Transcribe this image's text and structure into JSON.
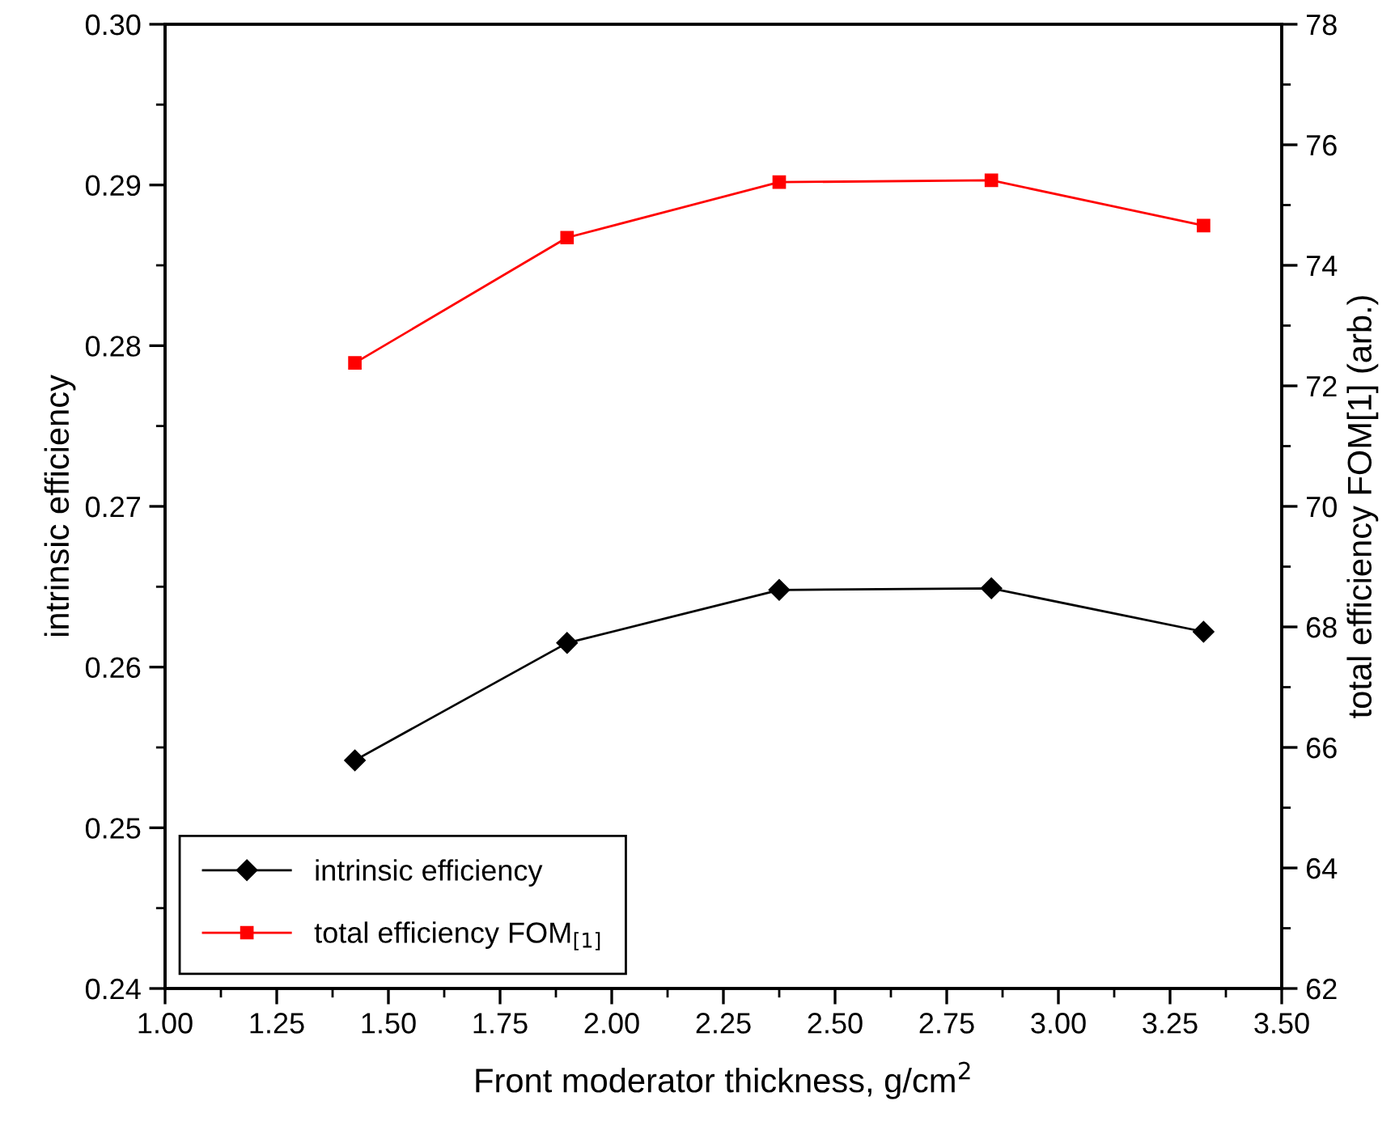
{
  "chart_data": {
    "type": "line",
    "xlabel": "Front moderator thickness, g/cm$^{2}$",
    "ylabel": "intrinsic efficiency",
    "y2label": "total efficiency FOM[1] (arb.)",
    "x": [
      1.425,
      1.9,
      2.375,
      2.85,
      3.325
    ],
    "series": [
      {
        "name": "intrinsic efficiency",
        "color": "#000000",
        "marker": "diamond",
        "values": [
          0.2542,
          0.2615,
          0.2648,
          0.2649,
          0.2622
        ]
      },
      {
        "name": "total efficiency FOM$_{[1]}$",
        "color": "#ff0000",
        "marker": "square",
        "axis": "y2",
        "values": [
          72.38,
          74.46,
          75.38,
          75.41,
          74.66
        ]
      }
    ],
    "xlim": [
      1.0,
      3.5
    ],
    "xticks": [
      {
        "value": 1.0,
        "label": "1.00"
      },
      1.25,
      {
        "value": 1.5,
        "label": "1.50"
      },
      1.75,
      {
        "value": 2.0,
        "label": "2.00"
      },
      2.25,
      {
        "value": 2.5,
        "label": "2.50"
      },
      2.75,
      {
        "value": 3.0,
        "label": "3.00"
      },
      3.25,
      {
        "value": 3.5,
        "label": "3.50"
      }
    ],
    "ylim": [
      0.24,
      0.3
    ],
    "yticks": [
      0.24,
      0.25,
      0.26,
      0.27,
      0.28,
      0.29,
      {
        "value": 0.3,
        "label": "0.30"
      }
    ],
    "y2lim": [
      62,
      78
    ],
    "y2ticks": [
      62,
      64,
      66,
      68,
      70,
      72,
      74,
      76,
      78
    ],
    "legend": "bottom left",
    "grid": false,
    "line_style": "solid"
  }
}
